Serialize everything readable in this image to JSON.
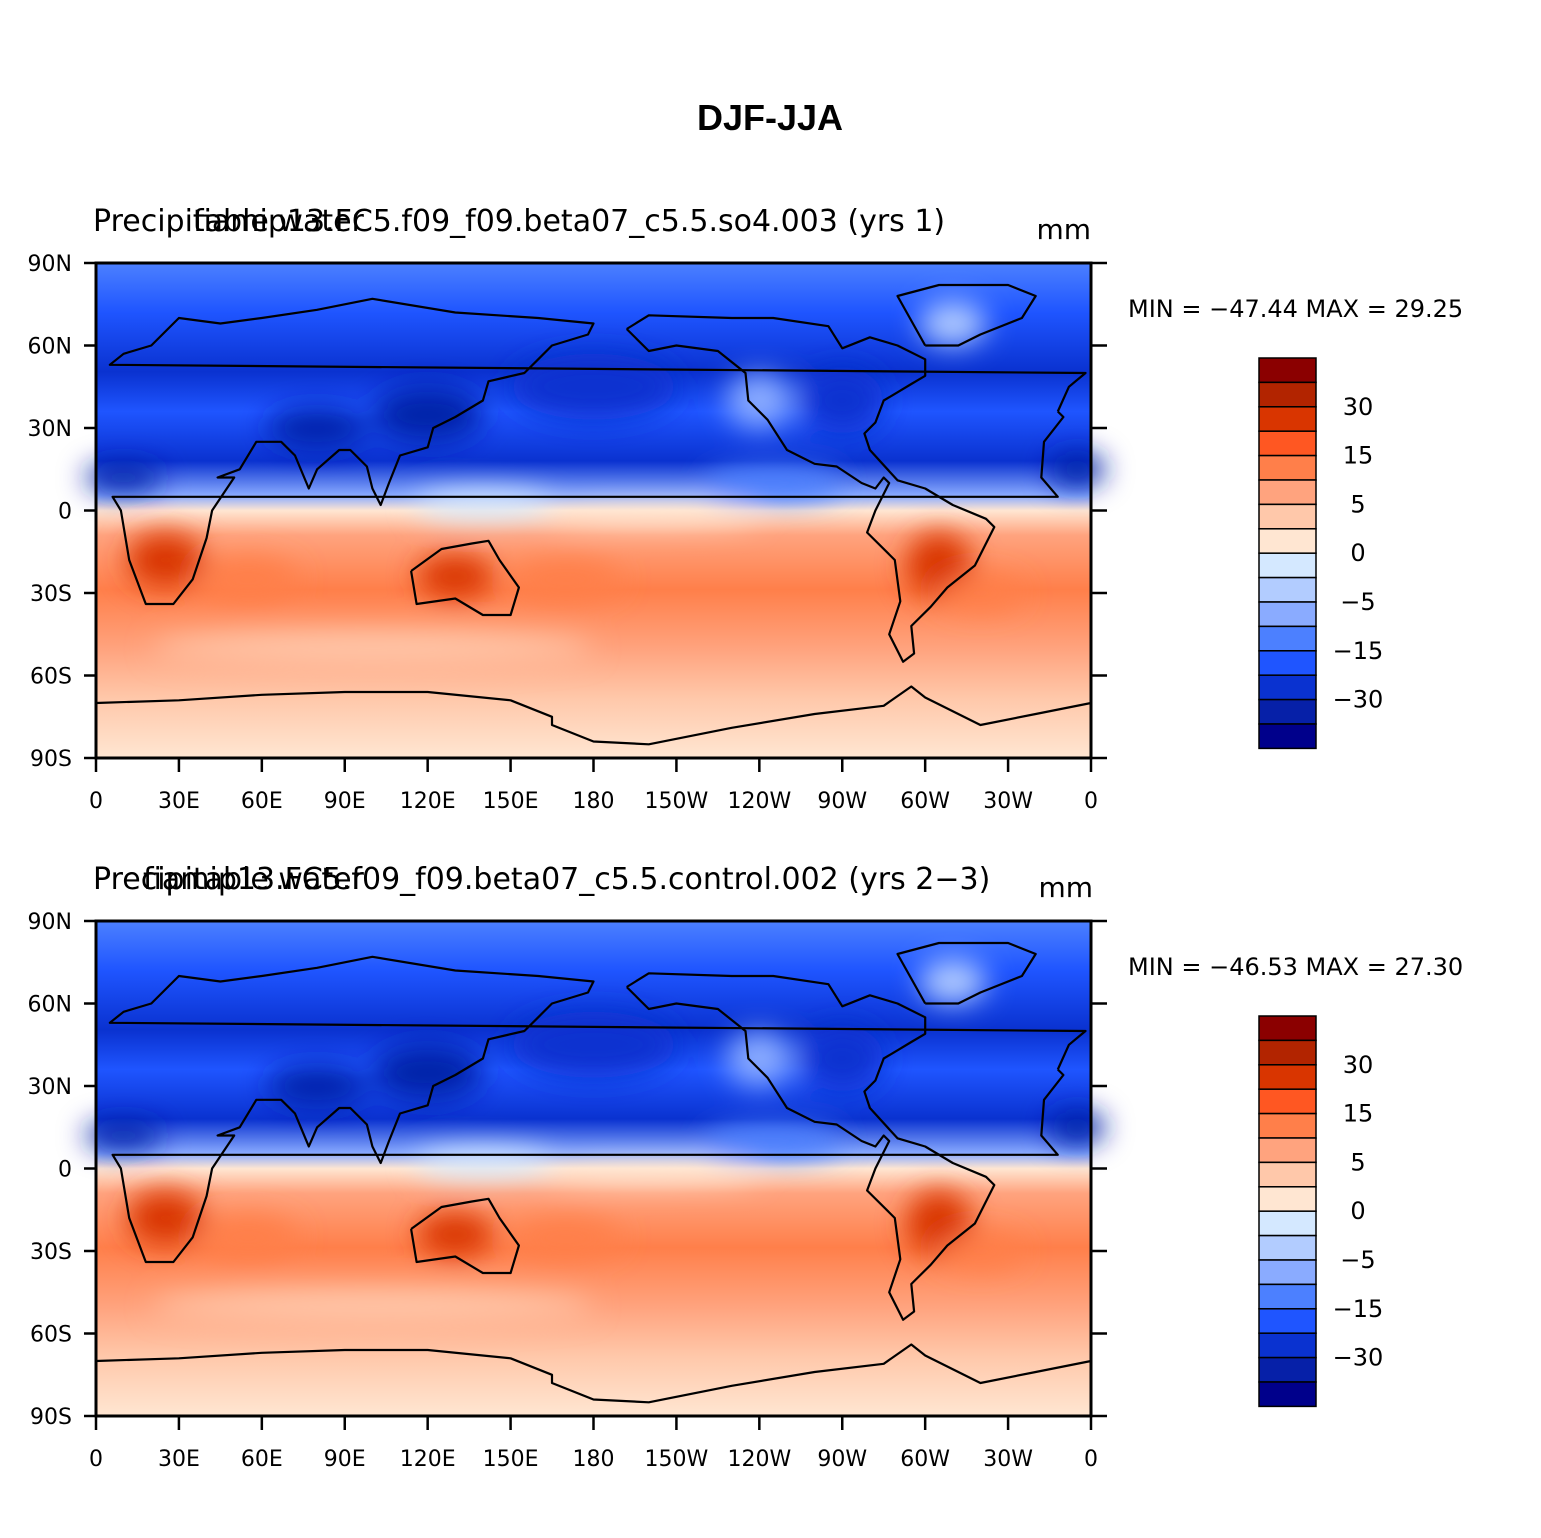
{
  "figure_title": "DJF-JJA",
  "panels": [
    {
      "left_title": "Precipitable water",
      "case_title": "fiamip13.FC5.f09_f09.beta07_c5.5.so4.003 (yrs  1)",
      "units": "mm",
      "minmax": "MIN = −47.44  MAX =   29.25"
    },
    {
      "left_title": "Precipitable water",
      "case_title": "fiamip13.FC5.f09_f09.beta07_c5.5.control.002 (yrs  2−3)",
      "units": "mm",
      "minmax": "MIN = −46.53  MAX =   27.30"
    }
  ],
  "lat_ticks": [
    "90N",
    "60N",
    "30N",
    "0",
    "30S",
    "60S",
    "90S"
  ],
  "lon_ticks": [
    "0",
    "30E",
    "60E",
    "90E",
    "120E",
    "150E",
    "180",
    "150W",
    "120W",
    "90W",
    "60W",
    "30W",
    "0"
  ],
  "colorbar": {
    "labels": [
      "30",
      "15",
      "5",
      "0",
      "−5",
      "−15",
      "−30"
    ],
    "colors": [
      "#8b0000",
      "#b22400",
      "#d93500",
      "#ff5722",
      "#ff7f4a",
      "#ffa37e",
      "#ffc8aa",
      "#ffe6d2",
      "#d4e8ff",
      "#b2ccff",
      "#8aabff",
      "#4c80ff",
      "#1f55ff",
      "#0a32d0",
      "#0620a8",
      "#00008b"
    ]
  },
  "chart_data": [
    {
      "type": "heatmap",
      "title": "Precipitable water",
      "subtitle": "fiamip13.FC5.f09_f09.beta07_c5.5.so4.003 (yrs  1)",
      "units": "mm",
      "min": -47.44,
      "max": 29.25,
      "colorbar_levels": [
        30,
        15,
        5,
        0,
        -5,
        -15,
        -30
      ],
      "lat_range": [
        -90,
        90
      ],
      "lon_range": [
        0,
        360
      ]
    },
    {
      "type": "heatmap",
      "title": "Precipitable water",
      "subtitle": "fiamip13.FC5.f09_f09.beta07_c5.5.control.002 (yrs  2−3)",
      "units": "mm",
      "min": -46.53,
      "max": 27.3,
      "colorbar_levels": [
        30,
        15,
        5,
        0,
        -5,
        -15,
        -30
      ],
      "lat_range": [
        -90,
        90
      ],
      "lon_range": [
        0,
        360
      ]
    }
  ]
}
